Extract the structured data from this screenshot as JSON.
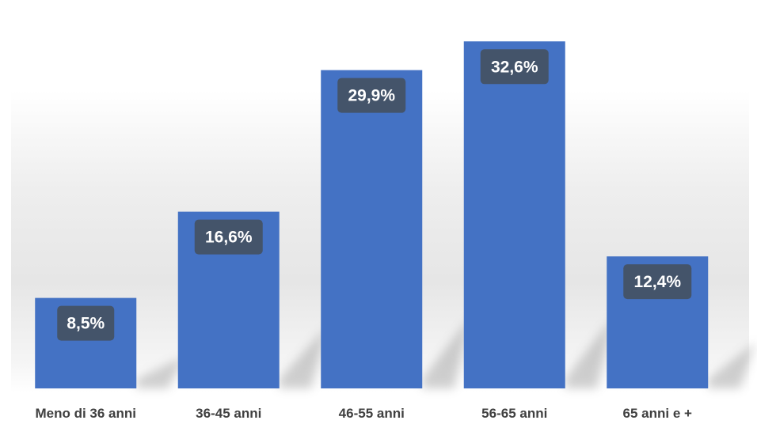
{
  "chart_data": {
    "type": "bar",
    "title": "",
    "xlabel": "",
    "ylabel": "",
    "categories": [
      "Meno di 36 anni",
      "36-45 anni",
      "46-55 anni",
      "56-65 anni",
      "65 anni e +"
    ],
    "values": [
      8.5,
      16.6,
      29.9,
      32.6,
      12.4
    ],
    "data_labels": [
      "8,5%",
      "16,6%",
      "29,9%",
      "32,6%",
      "12,4%"
    ],
    "ylim": [
      0,
      35
    ],
    "grid": false,
    "legend": "none",
    "colors": {
      "bar": "#4472c4",
      "label_box": "#44546a",
      "label_text": "#ffffff",
      "tick_text": "#404040",
      "background_band": "#e6e6e6"
    }
  }
}
